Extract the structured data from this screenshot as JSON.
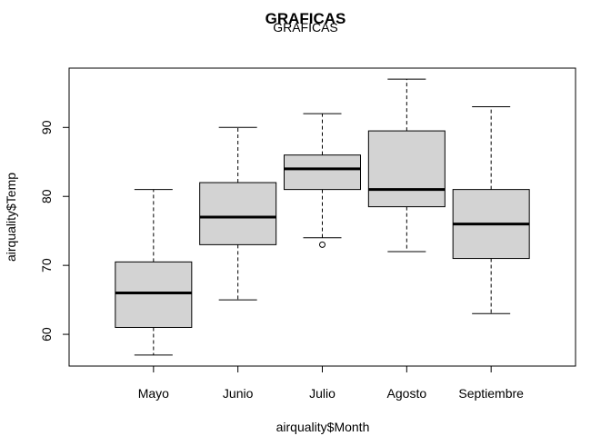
{
  "chart_data": {
    "type": "boxplot",
    "title": "GRAFICAS",
    "subtitle": "GRAFICAS",
    "xlabel": "airquality$Month",
    "ylabel": "airquality$Temp",
    "ylim": [
      55.4,
      98.6
    ],
    "yticks": [
      60,
      70,
      80,
      90
    ],
    "grid": false,
    "categories": [
      "Mayo",
      "Junio",
      "Julio",
      "Agosto",
      "Septiembre"
    ],
    "boxes": [
      {
        "category": "Mayo",
        "whisker_low": 57,
        "q1": 61,
        "median": 66,
        "q3": 70.5,
        "whisker_high": 81,
        "outliers": []
      },
      {
        "category": "Junio",
        "whisker_low": 65,
        "q1": 73,
        "median": 77,
        "q3": 82,
        "whisker_high": 90,
        "outliers": []
      },
      {
        "category": "Julio",
        "whisker_low": 74,
        "q1": 81,
        "median": 84,
        "q3": 86,
        "whisker_high": 92,
        "outliers": [
          73
        ]
      },
      {
        "category": "Agosto",
        "whisker_low": 72,
        "q1": 78.5,
        "median": 81,
        "q3": 89.5,
        "whisker_high": 97,
        "outliers": []
      },
      {
        "category": "Septiembre",
        "whisker_low": 63,
        "q1": 71,
        "median": 76,
        "q3": 81,
        "whisker_high": 93,
        "outliers": []
      }
    ],
    "colors": {
      "box_fill": "#d3d3d3",
      "stroke": "#000000"
    }
  }
}
